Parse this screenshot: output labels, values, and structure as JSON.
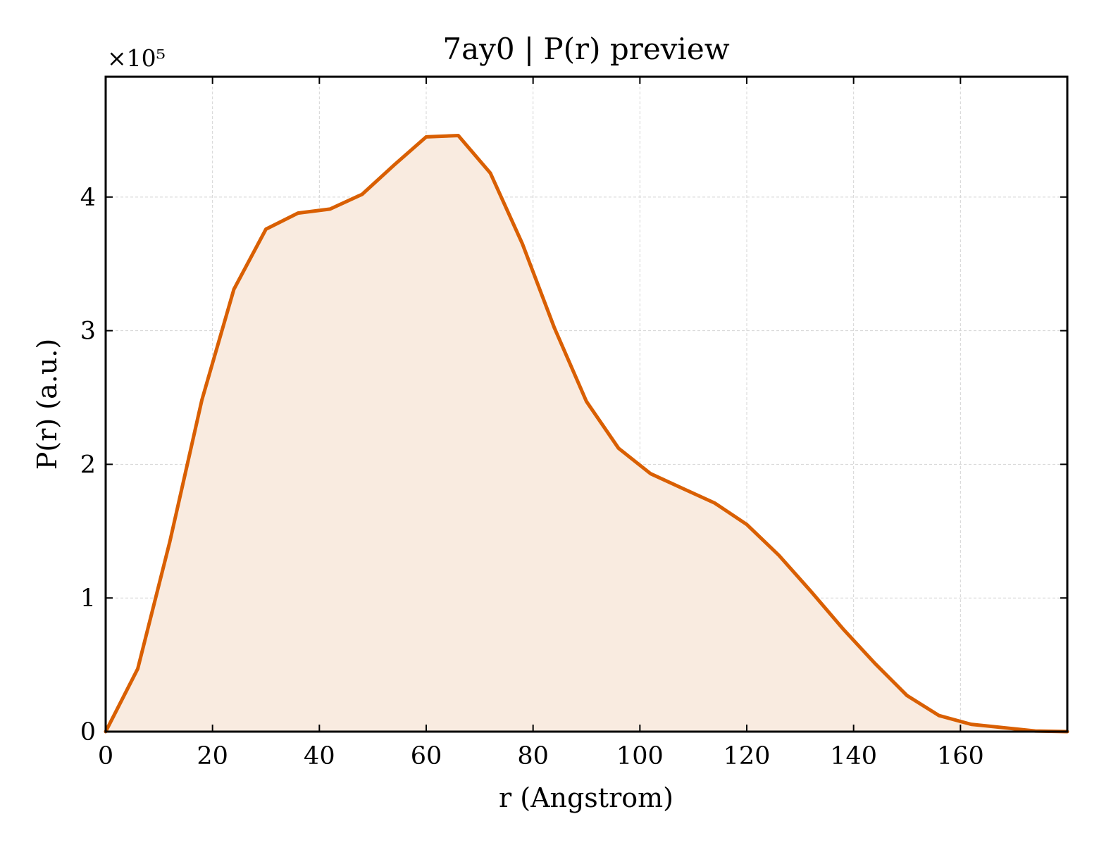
{
  "chart_data": {
    "type": "area",
    "title": "7ay0 | P(r) preview",
    "xlabel": "r (Angstrom)",
    "ylabel": "P(r) (a.u.)",
    "y_multiplier_label": "×10⁵",
    "y_multiplier": 100000,
    "xlim": [
      0,
      180
    ],
    "ylim": [
      0,
      490000
    ],
    "x_ticks": [
      0,
      20,
      40,
      60,
      80,
      100,
      120,
      140,
      160
    ],
    "y_ticks": [
      0,
      100000,
      200000,
      300000,
      400000
    ],
    "y_tick_labels": [
      "0",
      "1",
      "2",
      "3",
      "4"
    ],
    "grid": true,
    "series": [
      {
        "color": "#d95f02",
        "fill_color": "#f9ebe0",
        "x": [
          0,
          6,
          12,
          18,
          24,
          30,
          36,
          42,
          48,
          54,
          60,
          66,
          72,
          78,
          84,
          90,
          96,
          102,
          108,
          114,
          120,
          126,
          132,
          138,
          144,
          150,
          156,
          162,
          168,
          174,
          180
        ],
        "y": [
          0,
          47000,
          142000,
          248000,
          331000,
          376000,
          388000,
          391000,
          402000,
          424000,
          445000,
          446000,
          418000,
          365000,
          302000,
          247000,
          212000,
          193000,
          182000,
          171000,
          155000,
          132000,
          105000,
          77000,
          51000,
          27000,
          12000,
          5500,
          3000,
          500,
          0
        ]
      }
    ]
  }
}
